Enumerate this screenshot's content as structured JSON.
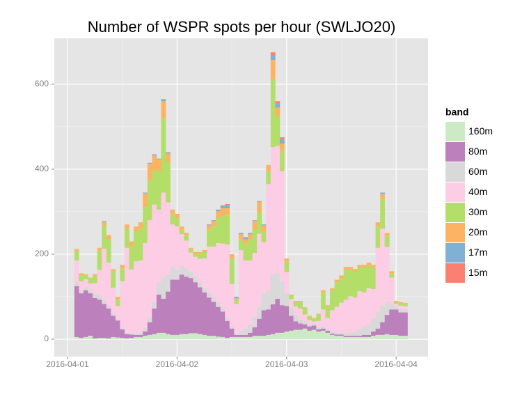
{
  "chart_data": {
    "type": "stacked-bar",
    "title": "Number of WSPR spots per hour (SWLJO20)",
    "legend_title": "band",
    "x": [
      2,
      3,
      4,
      5,
      6,
      7,
      8,
      9,
      10,
      11,
      12,
      13,
      14,
      15,
      16,
      17,
      18,
      19,
      20,
      21,
      22,
      23,
      24,
      25,
      26,
      27,
      28,
      29,
      30,
      31,
      32,
      33,
      34,
      35,
      36,
      37,
      38,
      39,
      40,
      41,
      42,
      43,
      44,
      45,
      46,
      47,
      48,
      49,
      50,
      51,
      52,
      53,
      54,
      55,
      56,
      57,
      58,
      59,
      60,
      61,
      62,
      63,
      64,
      65,
      66,
      67,
      68,
      69,
      70,
      71,
      72,
      73,
      74
    ],
    "xlim": [
      -2.9,
      79
    ],
    "xticks": [
      {
        "value": 0,
        "label": "2016-04-01"
      },
      {
        "value": 24,
        "label": "2016-04-02"
      },
      {
        "value": 48,
        "label": "2016-04-03"
      },
      {
        "value": 72,
        "label": "2016-04-04"
      }
    ],
    "ylim": [
      -41,
      708
    ],
    "yticks": [
      0,
      200,
      400,
      600
    ],
    "grid": true,
    "legend_position": "right",
    "series": [
      {
        "name": "160m",
        "color": "#ccebc5",
        "values": [
          5,
          3,
          5,
          8,
          2,
          3,
          3,
          2,
          5,
          4,
          3,
          2,
          3,
          5,
          5,
          8,
          10,
          12,
          15,
          15,
          12,
          10,
          10,
          12,
          12,
          14,
          14,
          12,
          10,
          8,
          8,
          6,
          5,
          3,
          5,
          5,
          5,
          5,
          5,
          8,
          8,
          8,
          10,
          12,
          15,
          15,
          18,
          20,
          22,
          22,
          25,
          20,
          22,
          18,
          20,
          15,
          10,
          8,
          8,
          5,
          5,
          5,
          5,
          5,
          5,
          8,
          10,
          10,
          12,
          10,
          10,
          8,
          8
        ]
      },
      {
        "name": "80m",
        "color": "#bc80bd",
        "values": [
          120,
          105,
          110,
          100,
          95,
          90,
          80,
          70,
          50,
          40,
          20,
          10,
          8,
          5,
          5,
          10,
          30,
          60,
          90,
          80,
          100,
          130,
          130,
          140,
          135,
          130,
          120,
          110,
          100,
          90,
          80,
          70,
          60,
          40,
          20,
          5,
          5,
          5,
          10,
          20,
          40,
          60,
          60,
          70,
          80,
          65,
          60,
          35,
          20,
          15,
          10,
          10,
          10,
          5,
          5,
          5,
          3,
          3,
          3,
          3,
          3,
          3,
          3,
          5,
          5,
          10,
          15,
          30,
          45,
          60,
          60,
          55,
          55
        ]
      },
      {
        "name": "60m",
        "color": "#d9d9d9",
        "values": [
          10,
          8,
          8,
          8,
          10,
          10,
          10,
          8,
          6,
          4,
          3,
          3,
          3,
          3,
          5,
          8,
          10,
          15,
          30,
          50,
          40,
          30,
          25,
          20,
          20,
          15,
          15,
          12,
          10,
          10,
          10,
          10,
          10,
          10,
          5,
          3,
          10,
          15,
          20,
          25,
          30,
          40,
          45,
          70,
          60,
          55,
          30,
          20,
          15,
          10,
          8,
          5,
          5,
          5,
          5,
          5,
          5,
          5,
          5,
          5,
          8,
          10,
          15,
          20,
          25,
          30,
          40,
          40,
          30,
          15,
          8,
          8,
          8
        ]
      },
      {
        "name": "40m",
        "color": "#fccde5",
        "values": [
          50,
          20,
          18,
          15,
          25,
          60,
          120,
          100,
          60,
          30,
          110,
          200,
          150,
          170,
          170,
          200,
          230,
          230,
          170,
          200,
          170,
          100,
          100,
          75,
          65,
          45,
          45,
          55,
          70,
          110,
          120,
          140,
          150,
          170,
          100,
          70,
          190,
          160,
          150,
          150,
          170,
          120,
          250,
          300,
          300,
          260,
          50,
          20,
          20,
          25,
          15,
          10,
          5,
          15,
          40,
          25,
          50,
          60,
          70,
          80,
          85,
          80,
          90,
          80,
          85,
          70,
          150,
          180,
          130,
          60,
          5,
          8,
          7
        ]
      },
      {
        "name": "30m",
        "color": "#b3de69",
        "values": [
          22,
          15,
          10,
          12,
          18,
          45,
          55,
          55,
          40,
          15,
          30,
          45,
          55,
          70,
          75,
          85,
          95,
          80,
          90,
          175,
          95,
          25,
          20,
          10,
          12,
          8,
          8,
          12,
          15,
          40,
          48,
          60,
          65,
          70,
          60,
          10,
          25,
          40,
          50,
          55,
          50,
          25,
          30,
          160,
          70,
          50,
          25,
          7,
          10,
          15,
          15,
          8,
          6,
          15,
          40,
          27,
          47,
          58,
          58,
          70,
          62,
          60,
          55,
          58,
          53,
          50,
          50,
          70,
          25,
          10,
          4,
          5,
          5
        ]
      },
      {
        "name": "20m",
        "color": "#fdb462",
        "values": [
          5,
          4,
          2,
          2,
          3,
          7,
          8,
          10,
          4,
          7,
          9,
          10,
          11,
          12,
          15,
          32,
          38,
          35,
          28,
          40,
          20,
          10,
          10,
          8,
          6,
          3,
          3,
          4,
          5,
          10,
          12,
          15,
          18,
          15,
          10,
          3,
          12,
          10,
          12,
          20,
          25,
          15,
          15,
          45,
          20,
          15,
          7,
          3,
          3,
          3,
          2,
          2,
          2,
          2,
          5,
          3,
          5,
          6,
          6,
          7,
          7,
          7,
          7,
          7,
          7,
          7,
          10,
          12,
          8,
          5,
          3,
          3,
          2
        ]
      },
      {
        "name": "17m",
        "color": "#80b1d3",
        "values": [
          0,
          0,
          0,
          0,
          0,
          0,
          2,
          0,
          0,
          0,
          0,
          0,
          0,
          0,
          0,
          2,
          2,
          3,
          2,
          3,
          3,
          0,
          0,
          0,
          0,
          0,
          0,
          0,
          0,
          2,
          2,
          4,
          5,
          7,
          0,
          4,
          3,
          5,
          3,
          2,
          2,
          2,
          0,
          10,
          10,
          10,
          0,
          0,
          0,
          0,
          0,
          0,
          0,
          0,
          0,
          0,
          0,
          0,
          0,
          0,
          0,
          0,
          0,
          0,
          0,
          0,
          0,
          3,
          0,
          0,
          0,
          0,
          0
        ]
      },
      {
        "name": "15m",
        "color": "#fb8072",
        "values": [
          0,
          0,
          0,
          0,
          0,
          0,
          0,
          0,
          0,
          0,
          0,
          0,
          0,
          0,
          0,
          0,
          0,
          0,
          0,
          2,
          0,
          0,
          0,
          0,
          0,
          0,
          0,
          0,
          0,
          0,
          0,
          0,
          2,
          3,
          0,
          0,
          0,
          0,
          0,
          0,
          0,
          0,
          0,
          8,
          5,
          5,
          0,
          0,
          0,
          0,
          0,
          0,
          0,
          0,
          0,
          0,
          0,
          0,
          0,
          0,
          0,
          0,
          0,
          0,
          0,
          0,
          0,
          0,
          0,
          0,
          0,
          0,
          0
        ]
      }
    ]
  }
}
